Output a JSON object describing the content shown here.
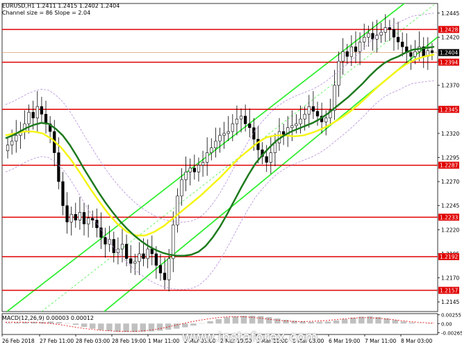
{
  "header": {
    "symbol_line": "EURUSD,H1  1.2411 1.2415 1.2402 1.2404",
    "channel_line": "Channel size = 86 Slope = 2.04"
  },
  "macd_header": "MACD(12,26,9) 0.00003 0.00012",
  "watermark": "www.instaforex.com",
  "colors": {
    "candle": "#000000",
    "ma_fast": "#1e7a1e",
    "ma_slow": "#f5f516",
    "channel": "#33ee33",
    "level_line": "#e00000",
    "level_label_bg": "#e00000",
    "current_label_bg": "#000000",
    "bollinger": "#b48cd8",
    "macd_hist": "#c0c0c0",
    "macd_signal": "#e00000"
  },
  "chart_data": [
    {
      "type": "candlestick",
      "title": "EURUSD,H1",
      "ylim": [
        1.2135,
        1.2455
      ],
      "y_ticks": [
        1.2445,
        1.242,
        1.2395,
        1.237,
        1.2345,
        1.232,
        1.2295,
        1.227,
        1.2245,
        1.222,
        1.2195,
        1.217,
        1.2145
      ],
      "y_tick_labels": [
        "1.2445",
        "1.2420",
        "1.2395",
        "1.2370",
        "1.2345",
        "1.2320",
        "1.2295",
        "1.2270",
        "1.2245",
        "1.2220",
        "1.2195",
        "1.2170",
        "1.2145"
      ],
      "x_tick_labels": [
        "26 Feb 2018",
        "27 Feb 11:00",
        "28 Feb 03:00",
        "28 Feb 19:00",
        "1 Mar 11:00",
        "2 Mar 03:00",
        "2 Mar 19:00",
        "5 Mar 11:00",
        "6 Mar 03:00",
        "6 Mar 19:00",
        "7 Mar 11:00",
        "8 Mar 03:00"
      ],
      "horizontal_levels": [
        {
          "value": 1.2428,
          "label": "1.2428"
        },
        {
          "value": 1.2394,
          "label": "1.2394"
        },
        {
          "value": 1.2345,
          "label": "1.2345"
        },
        {
          "value": 1.2287,
          "label": "1.2287"
        },
        {
          "value": 1.2233,
          "label": "1.2233"
        },
        {
          "value": 1.2192,
          "label": "1.2192"
        },
        {
          "value": 1.2157,
          "label": "1.2157"
        }
      ],
      "current_price": {
        "value": 1.2404,
        "label": "1.2404"
      },
      "close_series": [
        1.2308,
        1.2312,
        1.2318,
        1.2322,
        1.233,
        1.2342,
        1.2336,
        1.2348,
        1.234,
        1.233,
        1.2322,
        1.23,
        1.227,
        1.2245,
        1.2228,
        1.2236,
        1.223,
        1.2238,
        1.2226,
        1.2232,
        1.223,
        1.2222,
        1.2212,
        1.2205,
        1.221,
        1.2196,
        1.22,
        1.2205,
        1.219,
        1.2185,
        1.2187,
        1.2195,
        1.219,
        1.22,
        1.2195,
        1.2183,
        1.2175,
        1.2168,
        1.219,
        1.2225,
        1.2255,
        1.2272,
        1.228,
        1.2284,
        1.228,
        1.2287,
        1.229,
        1.23,
        1.2305,
        1.2312,
        1.2318,
        1.232,
        1.2322,
        1.233,
        1.2335,
        1.2338,
        1.233,
        1.2326,
        1.2314,
        1.2303,
        1.2296,
        1.229,
        1.23,
        1.231,
        1.2322,
        1.2318,
        1.2326,
        1.2328,
        1.233,
        1.2335,
        1.234,
        1.2348,
        1.2343,
        1.2338,
        1.2332,
        1.2336,
        1.2344,
        1.237,
        1.2395,
        1.2405,
        1.24,
        1.241,
        1.2405,
        1.2415,
        1.242,
        1.2424,
        1.2418,
        1.2422,
        1.2425,
        1.243,
        1.2428,
        1.242,
        1.2415,
        1.241,
        1.2404,
        1.24,
        1.2405,
        1.241,
        1.24,
        1.2406,
        1.2404
      ],
      "ma_fast_series": [
        1.2315,
        1.2318,
        1.2322,
        1.2326,
        1.2329,
        1.2331,
        1.233,
        1.2325,
        1.2318,
        1.2308,
        1.2296,
        1.2283,
        1.2271,
        1.2259,
        1.2248,
        1.2238,
        1.2229,
        1.2221,
        1.2214,
        1.2208,
        1.2203,
        1.2199,
        1.2196,
        1.2194,
        1.2193,
        1.2193,
        1.2194,
        1.2197,
        1.2203,
        1.2212,
        1.2223,
        1.2236,
        1.225,
        1.2264,
        1.2277,
        1.2289,
        1.2298,
        1.2306,
        1.2313,
        1.2318,
        1.2322,
        1.2325,
        1.2328,
        1.2331,
        1.2335,
        1.234,
        1.2346,
        1.2352,
        1.2358,
        1.2365,
        1.2372,
        1.238,
        1.2387,
        1.2393,
        1.2397,
        1.24,
        1.2404,
        1.2407,
        1.2408,
        1.2409,
        1.241
      ],
      "ma_slow_series": [
        1.2318,
        1.232,
        1.2322,
        1.2322,
        1.232,
        1.2314,
        1.2305,
        1.2293,
        1.2279,
        1.2264,
        1.225,
        1.2237,
        1.2226,
        1.2218,
        1.2214,
        1.2214,
        1.2218,
        1.2224,
        1.2232,
        1.224,
        1.2248,
        1.2256,
        1.2265,
        1.2274,
        1.2284,
        1.2294,
        1.2302,
        1.231,
        1.2316,
        1.2318,
        1.2318,
        1.2317,
        1.2318,
        1.2321,
        1.2325,
        1.233,
        1.2336,
        1.2343,
        1.2351,
        1.236,
        1.2369,
        1.2377,
        1.2385,
        1.2392,
        1.2397,
        1.24,
        1.2402
      ],
      "channel_slope": 2.04,
      "channel_size": 86
    },
    {
      "type": "bar",
      "title": "MACD(12,26,9) 0.00003 0.00012",
      "ylim": [
        -0.0032,
        0.0029
      ],
      "y_ticks": [
        0.00255,
        0.0,
        -0.00265
      ],
      "y_tick_labels": [
        "0.00255",
        "0.00",
        "-0.00265"
      ],
      "histogram": [
        0.0002,
        0.0003,
        0.0004,
        0.0005,
        0.0005,
        0.0006,
        0.0004,
        0.0001,
        -0.0004,
        -0.001,
        -0.0015,
        -0.0019,
        -0.0022,
        -0.0024,
        -0.0025,
        -0.0025,
        -0.0024,
        -0.0023,
        -0.0021,
        -0.0018,
        -0.0015,
        -0.0011,
        -0.0006,
        0.0001,
        0.0007,
        0.0013,
        0.0018,
        0.0021,
        0.0023,
        0.0023,
        0.0022,
        0.0019,
        0.0015,
        0.0011,
        0.0008,
        0.0006,
        0.0005,
        0.0005,
        0.0006,
        0.0009,
        0.0013,
        0.0017,
        0.002,
        0.0021,
        0.0019,
        0.0015,
        0.001,
        0.0006,
        0.0003,
        0.0001,
        3e-05
      ],
      "signal": [
        0.0004,
        0.0004,
        0.0004,
        0.0003,
        0.0001,
        -0.0003,
        -0.0008,
        -0.0013,
        -0.0017,
        -0.002,
        -0.0022,
        -0.0023,
        -0.0023,
        -0.0021,
        -0.0017,
        -0.0011,
        -0.0004,
        0.0003,
        0.0009,
        0.0014,
        0.0018,
        0.002,
        0.002,
        0.0018,
        0.0015,
        0.0011,
        0.0008,
        0.0006,
        0.0006,
        0.0007,
        0.0009,
        0.0012,
        0.0015,
        0.0017,
        0.0017,
        0.0015,
        0.0012,
        0.0008,
        0.0005,
        0.0003,
        0.00012
      ]
    }
  ]
}
